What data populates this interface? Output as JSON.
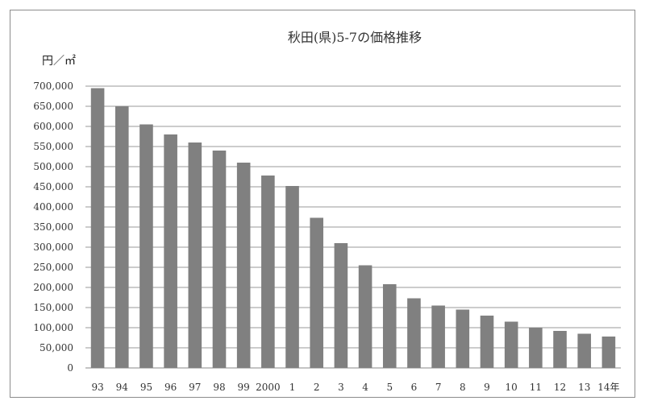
{
  "chart_data": {
    "type": "bar",
    "title": "秋田(県)5-7の価格推移",
    "ylabel": "円／㎡",
    "xlabel": "",
    "categories": [
      "93",
      "94",
      "95",
      "96",
      "97",
      "98",
      "99",
      "2000",
      "1",
      "2",
      "3",
      "4",
      "5",
      "6",
      "7",
      "8",
      "9",
      "10",
      "11",
      "12",
      "13",
      "14年"
    ],
    "values": [
      695000,
      650000,
      605000,
      580000,
      560000,
      540000,
      510000,
      478000,
      452000,
      373000,
      310000,
      255000,
      208000,
      173000,
      155000,
      145000,
      130000,
      115000,
      100000,
      92000,
      85000,
      78000
    ],
    "ylim": [
      0,
      700000
    ],
    "yticks": [
      "700,000",
      "650,000",
      "600,000",
      "550,000",
      "500,000",
      "450,000",
      "400,000",
      "350,000",
      "300,000",
      "250,000",
      "200,000",
      "150,000",
      "100,000",
      "50,000",
      "0"
    ],
    "grid": true,
    "bar_color": "#808080",
    "legend": "none"
  }
}
